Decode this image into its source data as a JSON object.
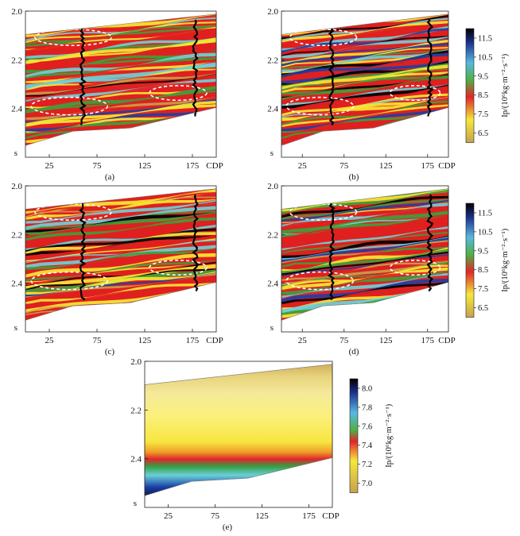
{
  "figure": {
    "panels": [
      {
        "id": "a",
        "caption": "(a)",
        "kind": "inversion",
        "y_ticks": [
          "2.0",
          "2.2",
          "2.4"
        ],
        "y_unit": "s",
        "x_ticks": [
          "25",
          "75",
          "125",
          "175"
        ],
        "x_unit": "CDP",
        "wells_cdp": [
          60,
          178
        ],
        "has_colorbar": false
      },
      {
        "id": "b",
        "caption": "(b)",
        "kind": "inversion",
        "y_ticks": [
          "2.0",
          "2.2",
          "2.4"
        ],
        "y_unit": "s",
        "x_ticks": [
          "25",
          "75",
          "125",
          "175"
        ],
        "x_unit": "CDP",
        "wells_cdp": [
          60,
          178
        ],
        "has_colorbar": true
      },
      {
        "id": "c",
        "caption": "(c)",
        "kind": "inversion",
        "y_ticks": [
          "2.0",
          "2.2",
          "2.4"
        ],
        "y_unit": "s",
        "x_ticks": [
          "25",
          "75",
          "125",
          "175"
        ],
        "x_unit": "CDP",
        "wells_cdp": [
          60,
          178
        ],
        "has_colorbar": false
      },
      {
        "id": "d",
        "caption": "(d)",
        "kind": "inversion",
        "y_ticks": [
          "2.0",
          "2.2",
          "2.4"
        ],
        "y_unit": "s",
        "x_ticks": [
          "25",
          "75",
          "125",
          "175"
        ],
        "x_unit": "CDP",
        "wells_cdp": [
          60,
          178
        ],
        "has_colorbar": true
      },
      {
        "id": "e",
        "caption": "(e)",
        "kind": "lowfreq",
        "y_ticks": [
          "2.0",
          "2.2",
          "2.4"
        ],
        "y_unit": "s",
        "x_ticks": [
          "25",
          "75",
          "125",
          "175"
        ],
        "x_unit": "CDP",
        "wells_cdp": [],
        "has_colorbar": true
      }
    ],
    "colorbar_high": {
      "ticks": [
        "11.5",
        "10.5",
        "9.5",
        "8.5",
        "7.5",
        "6.5"
      ],
      "label": "Ip/(10⁶kg·m⁻²·s⁻¹)",
      "range": [
        6.0,
        12.0
      ]
    },
    "colorbar_low": {
      "ticks": [
        "8.0",
        "7.8",
        "7.6",
        "7.4",
        "7.2",
        "7.0"
      ],
      "label": "Ip/(10⁶kg·m⁻²·s⁻¹)",
      "range": [
        6.9,
        8.1
      ]
    },
    "colors": {
      "black": "#000000",
      "blue": "#1f3fa5",
      "cyan": "#6fd0d6",
      "green": "#3f9e3b",
      "red": "#e02020",
      "yellow": "#f6e834",
      "tan": "#c7a04a"
    }
  }
}
